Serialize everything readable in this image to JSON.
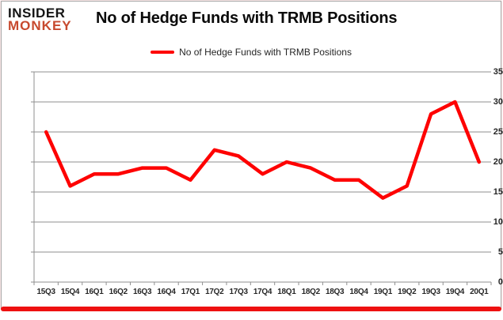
{
  "logo": {
    "line1": "INSIDER",
    "line2": "MONKEY"
  },
  "header": {
    "title": "No of Hedge Funds with TRMB Positions"
  },
  "legend": {
    "label": "No of Hedge Funds with TRMB Positions"
  },
  "colors": {
    "line": "#fe0000",
    "grid": "#8f8f8f",
    "axis": "#8f8f8f",
    "text": "#262626",
    "logo_black": "#141414",
    "logo_red": "#c7492e",
    "card_border": "#a8a8a8",
    "bottom_bar": "#ee1111"
  },
  "chart_data": {
    "type": "line",
    "title": "No of Hedge Funds with TRMB Positions",
    "categories": [
      "15Q3",
      "15Q4",
      "16Q1",
      "16Q2",
      "16Q3",
      "16Q4",
      "17Q1",
      "17Q2",
      "17Q3",
      "17Q4",
      "18Q1",
      "18Q2",
      "18Q3",
      "18Q4",
      "19Q1",
      "19Q2",
      "19Q3",
      "19Q4",
      "20Q1"
    ],
    "series": [
      {
        "name": "No of Hedge Funds with TRMB Positions",
        "values": [
          25,
          16,
          18,
          18,
          19,
          19,
          17,
          22,
          21,
          18,
          20,
          19,
          17,
          17,
          14,
          16,
          28,
          30,
          20
        ]
      }
    ],
    "xlabel": "",
    "ylabel": "",
    "ylim": [
      0,
      35
    ],
    "ytick_step": 5,
    "grid": true,
    "legend_position": "top-center"
  }
}
